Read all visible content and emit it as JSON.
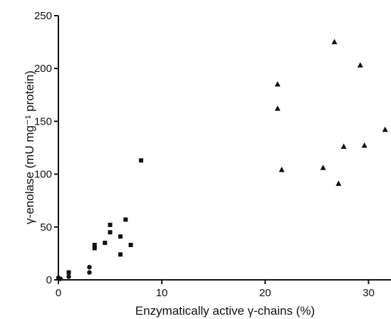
{
  "chart_data": {
    "type": "scatter",
    "title": "",
    "xlabel": "Enzymatically active γ-chains (%)",
    "ylabel": "γ-enolase (mU mg⁻¹ protein)",
    "xlim": [
      0,
      31
    ],
    "ylim": [
      0,
      250
    ],
    "xticks": [
      0,
      10,
      20,
      30
    ],
    "yticks": [
      0,
      50,
      100,
      150,
      200,
      250
    ],
    "xtick_labels": [
      "0",
      "10",
      "20",
      "30"
    ],
    "ytick_labels": [
      "0",
      "50",
      "100",
      "150",
      "200",
      "250"
    ],
    "grid": false,
    "series": [
      {
        "marker": "circle",
        "color": "#111111",
        "points": [
          {
            "x": 0,
            "y": 2
          },
          {
            "x": 0.2,
            "y": 1
          },
          {
            "x": 1,
            "y": 3
          },
          {
            "x": 3,
            "y": 7
          },
          {
            "x": 3,
            "y": 12
          }
        ]
      },
      {
        "marker": "square",
        "color": "#111111",
        "points": [
          {
            "x": 1,
            "y": 7
          },
          {
            "x": 3.5,
            "y": 30
          },
          {
            "x": 3.5,
            "y": 33
          },
          {
            "x": 4.5,
            "y": 35
          },
          {
            "x": 5,
            "y": 45
          },
          {
            "x": 5,
            "y": 52
          },
          {
            "x": 6,
            "y": 41
          },
          {
            "x": 6,
            "y": 24
          },
          {
            "x": 6.5,
            "y": 57
          },
          {
            "x": 7,
            "y": 33
          },
          {
            "x": 8,
            "y": 113
          }
        ]
      },
      {
        "marker": "triangle",
        "color": "#111111",
        "points": [
          {
            "x": 21.2,
            "y": 185
          },
          {
            "x": 21.2,
            "y": 162
          },
          {
            "x": 21.6,
            "y": 104
          },
          {
            "x": 25.6,
            "y": 106
          },
          {
            "x": 26.7,
            "y": 225
          },
          {
            "x": 27.1,
            "y": 91
          },
          {
            "x": 27.6,
            "y": 126
          },
          {
            "x": 29.2,
            "y": 203
          },
          {
            "x": 29.6,
            "y": 127
          },
          {
            "x": 31.6,
            "y": 142
          }
        ]
      }
    ]
  }
}
